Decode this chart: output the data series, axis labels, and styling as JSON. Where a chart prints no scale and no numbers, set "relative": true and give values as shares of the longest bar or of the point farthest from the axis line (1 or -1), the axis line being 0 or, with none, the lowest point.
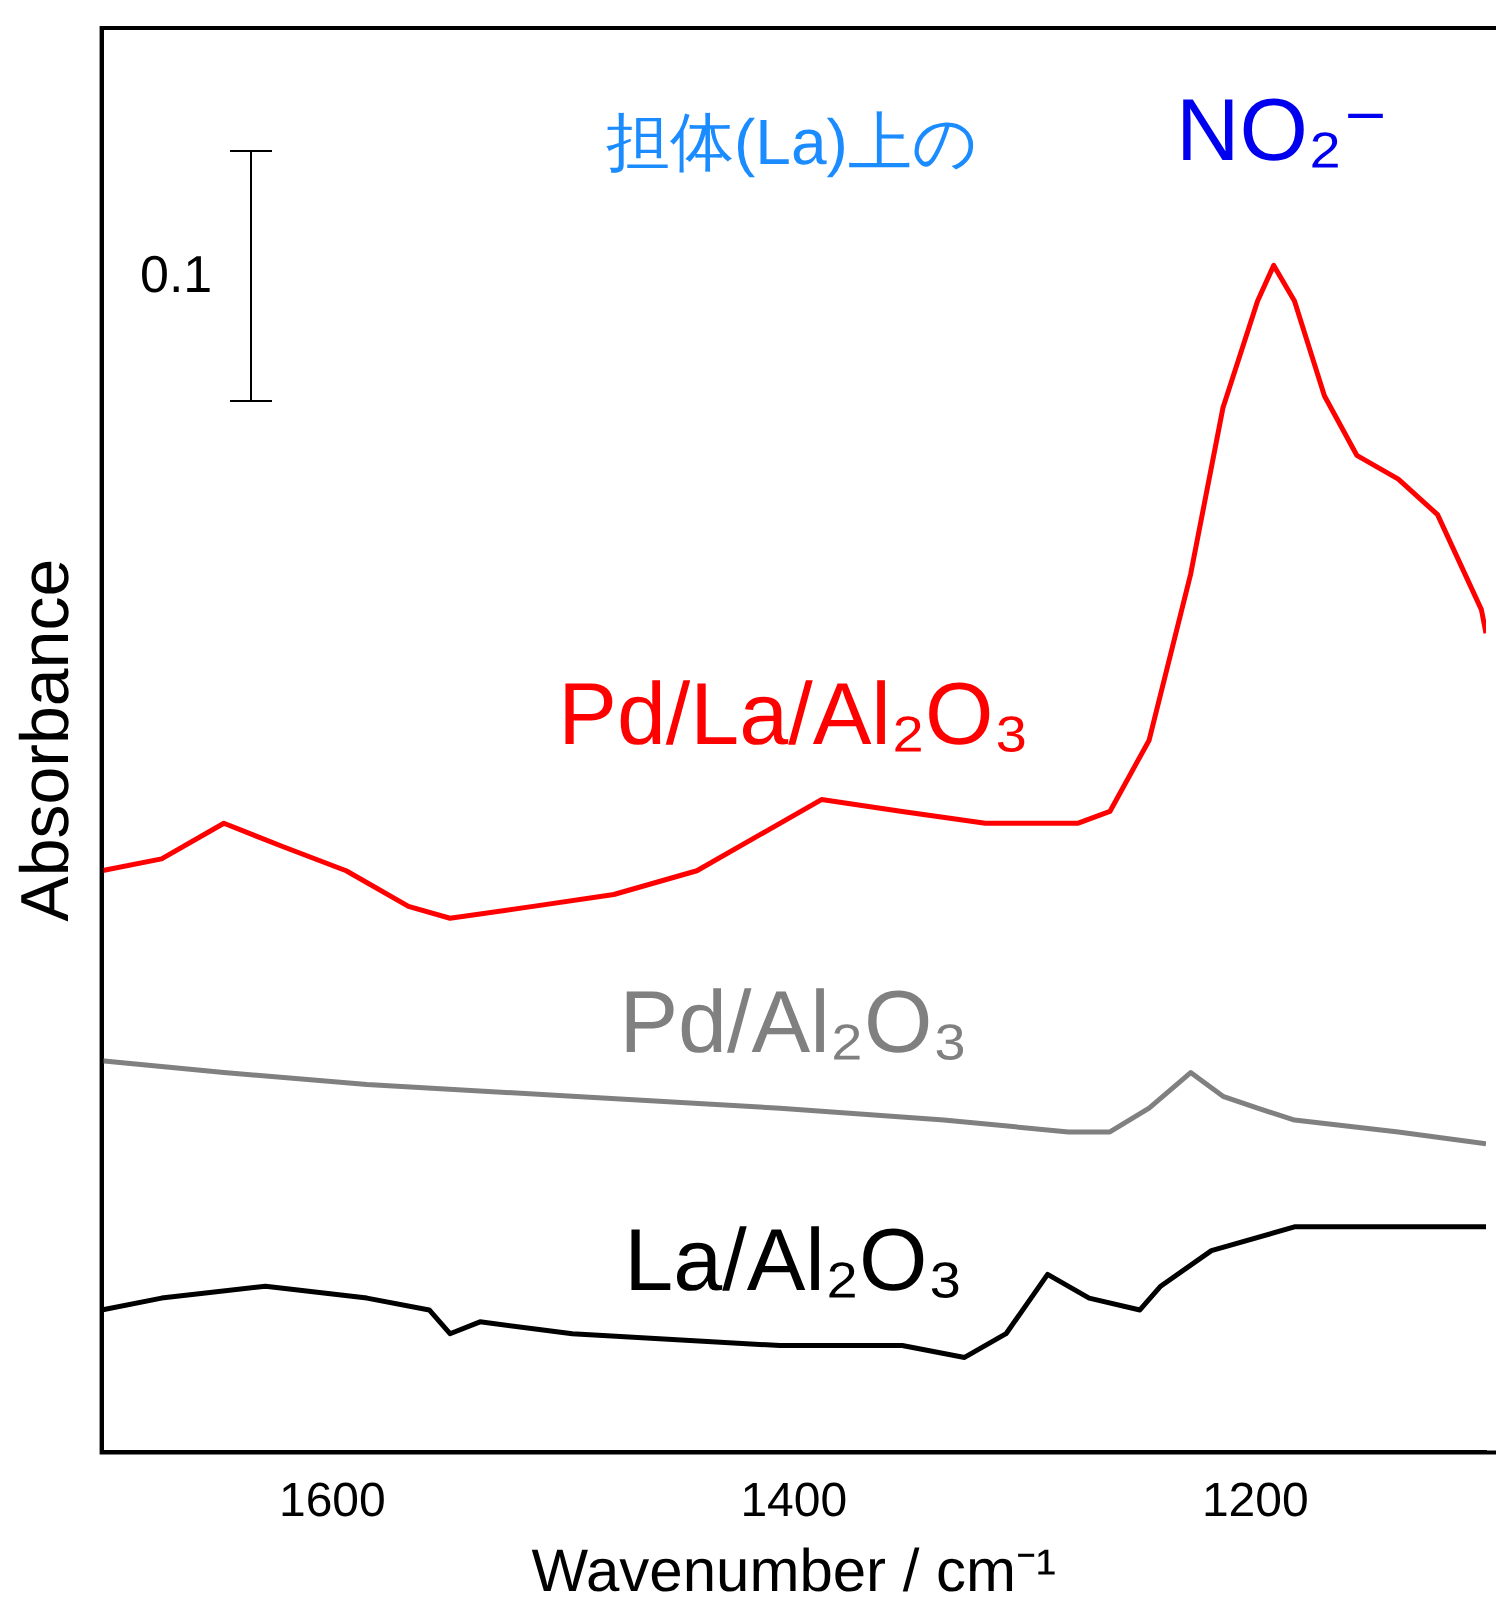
{
  "chart_data": {
    "type": "line",
    "relative": true,
    "xlabel": "Wavenumber / cm⁻¹",
    "ylabel": "Absorbance",
    "xlim": [
      1700,
      1100
    ],
    "xticks": [
      1600,
      1400,
      1200
    ],
    "legend": false,
    "grid": false,
    "marker": "none",
    "line_style": "solid",
    "annotations": [
      "担体(La)上の",
      "NO₂⁻",
      "0.1"
    ],
    "series": [
      {
        "name": "Pd/La/Al₂O₃",
        "color": "#ff0000",
        "x": [
          1700,
          1674,
          1647,
          1621,
          1594,
          1567,
          1549,
          1513,
          1478,
          1442,
          1415,
          1388,
          1353,
          1317,
          1290,
          1277,
          1263,
          1246,
          1228,
          1214,
          1199,
          1192,
          1183,
          1170,
          1156,
          1138,
          1121,
          1102,
          1100
        ],
        "values": [
          0.49,
          0.5,
          0.53,
          0.51,
          0.49,
          0.46,
          0.45,
          0.46,
          0.47,
          0.49,
          0.52,
          0.55,
          0.54,
          0.53,
          0.53,
          0.53,
          0.54,
          0.6,
          0.74,
          0.88,
          0.97,
          1,
          0.97,
          0.89,
          0.84,
          0.82,
          0.79,
          0.71,
          0.69
        ]
      },
      {
        "name": "Pd/Al₂O₃",
        "color": "#808080",
        "x": [
          1700,
          1647,
          1585,
          1496,
          1406,
          1335,
          1281,
          1263,
          1246,
          1228,
          1214,
          1199,
          1183,
          1138,
          1100
        ],
        "values": [
          0.33,
          0.32,
          0.31,
          0.3,
          0.29,
          0.28,
          0.27,
          0.27,
          0.29,
          0.32,
          0.3,
          0.29,
          0.28,
          0.27,
          0.26
        ]
      },
      {
        "name": "La/Al₂O₃",
        "color": "#000000",
        "x": [
          1700,
          1674,
          1629,
          1585,
          1558,
          1549,
          1536,
          1496,
          1406,
          1353,
          1326,
          1308,
          1290,
          1272,
          1250,
          1241,
          1219,
          1183,
          1138,
          1100
        ],
        "values": [
          0.12,
          0.13,
          0.14,
          0.13,
          0.12,
          0.1,
          0.11,
          0.1,
          0.09,
          0.09,
          0.08,
          0.1,
          0.15,
          0.13,
          0.12,
          0.14,
          0.17,
          0.19,
          0.19,
          0.19
        ]
      }
    ]
  }
}
